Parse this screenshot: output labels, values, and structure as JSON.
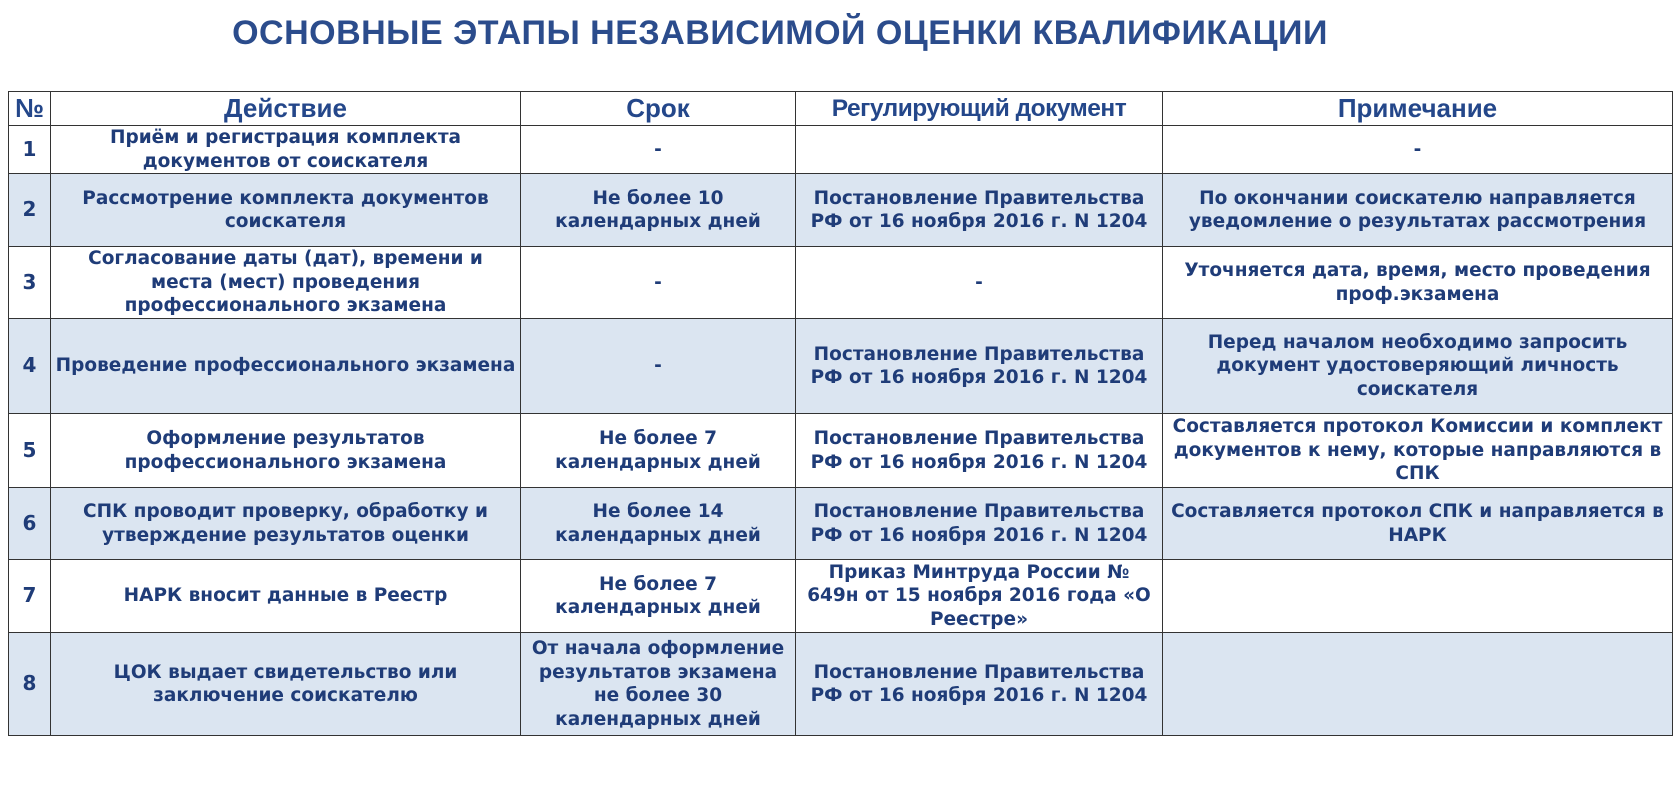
{
  "title": "ОСНОВНЫЕ ЭТАПЫ НЕЗАВИСИМОЙ ОЦЕНКИ КВАЛИФИКАЦИИ",
  "colors": {
    "text": "#1f3c78",
    "stripe": "#dbe5f1",
    "border": "#333333"
  },
  "table": {
    "headers": [
      "№",
      "Действие",
      "Срок",
      "Регулирующий документ",
      "Примечание"
    ],
    "rows": [
      {
        "num": "1",
        "action": "Приём и регистрация комплекта документов от соискателя",
        "term": "-",
        "document": "",
        "note": "-"
      },
      {
        "num": "2",
        "action": "Рассмотрение комплекта документов соискателя",
        "term": "Не более 10 календарных дней",
        "document": "Постановление Правительства РФ от 16 ноября 2016 г. N 1204",
        "note": "По окончании соискателю направляется уведомление о результатах рассмотрения"
      },
      {
        "num": "3",
        "action": "Согласование даты (дат), времени и места (мест) проведения профессионального экзамена",
        "term": "-",
        "document": "-",
        "note": "Уточняется дата, время, место проведения проф.экзамена"
      },
      {
        "num": "4",
        "action": "Проведение профессионального экзамена",
        "term": "-",
        "document": "Постановление Правительства РФ от 16 ноября 2016 г. N 1204",
        "note": "Перед началом необходимо запросить документ удостоверяющий личность соискателя"
      },
      {
        "num": "5",
        "action": "Оформление результатов профессионального экзамена",
        "term": "Не более 7 календарных дней",
        "document": "Постановление Правительства РФ от 16 ноября 2016 г. N 1204",
        "note": "Составляется протокол Комиссии и комплект документов к нему, которые направляются в СПК"
      },
      {
        "num": "6",
        "action": "СПК проводит проверку, обработку и утверждение результатов оценки",
        "term": "Не более 14 календарных дней",
        "document": "Постановление Правительства РФ от 16 ноября 2016 г. N 1204",
        "note": "Составляется протокол СПК и направляется в НАРК"
      },
      {
        "num": "7",
        "action": "НАРК вносит данные в Реестр",
        "term": "Не более 7 календарных дней",
        "document": "Приказ Минтруда России № 649н от 15 ноября 2016 года «О Реестре»",
        "note": ""
      },
      {
        "num": "8",
        "action": "ЦОК выдает свидетельство или заключение соискателю",
        "term": "От начала оформление результатов экзамена не более 30 календарных дней",
        "document": "Постановление Правительства РФ от 16 ноября 2016 г. N 1204",
        "note": ""
      }
    ]
  }
}
